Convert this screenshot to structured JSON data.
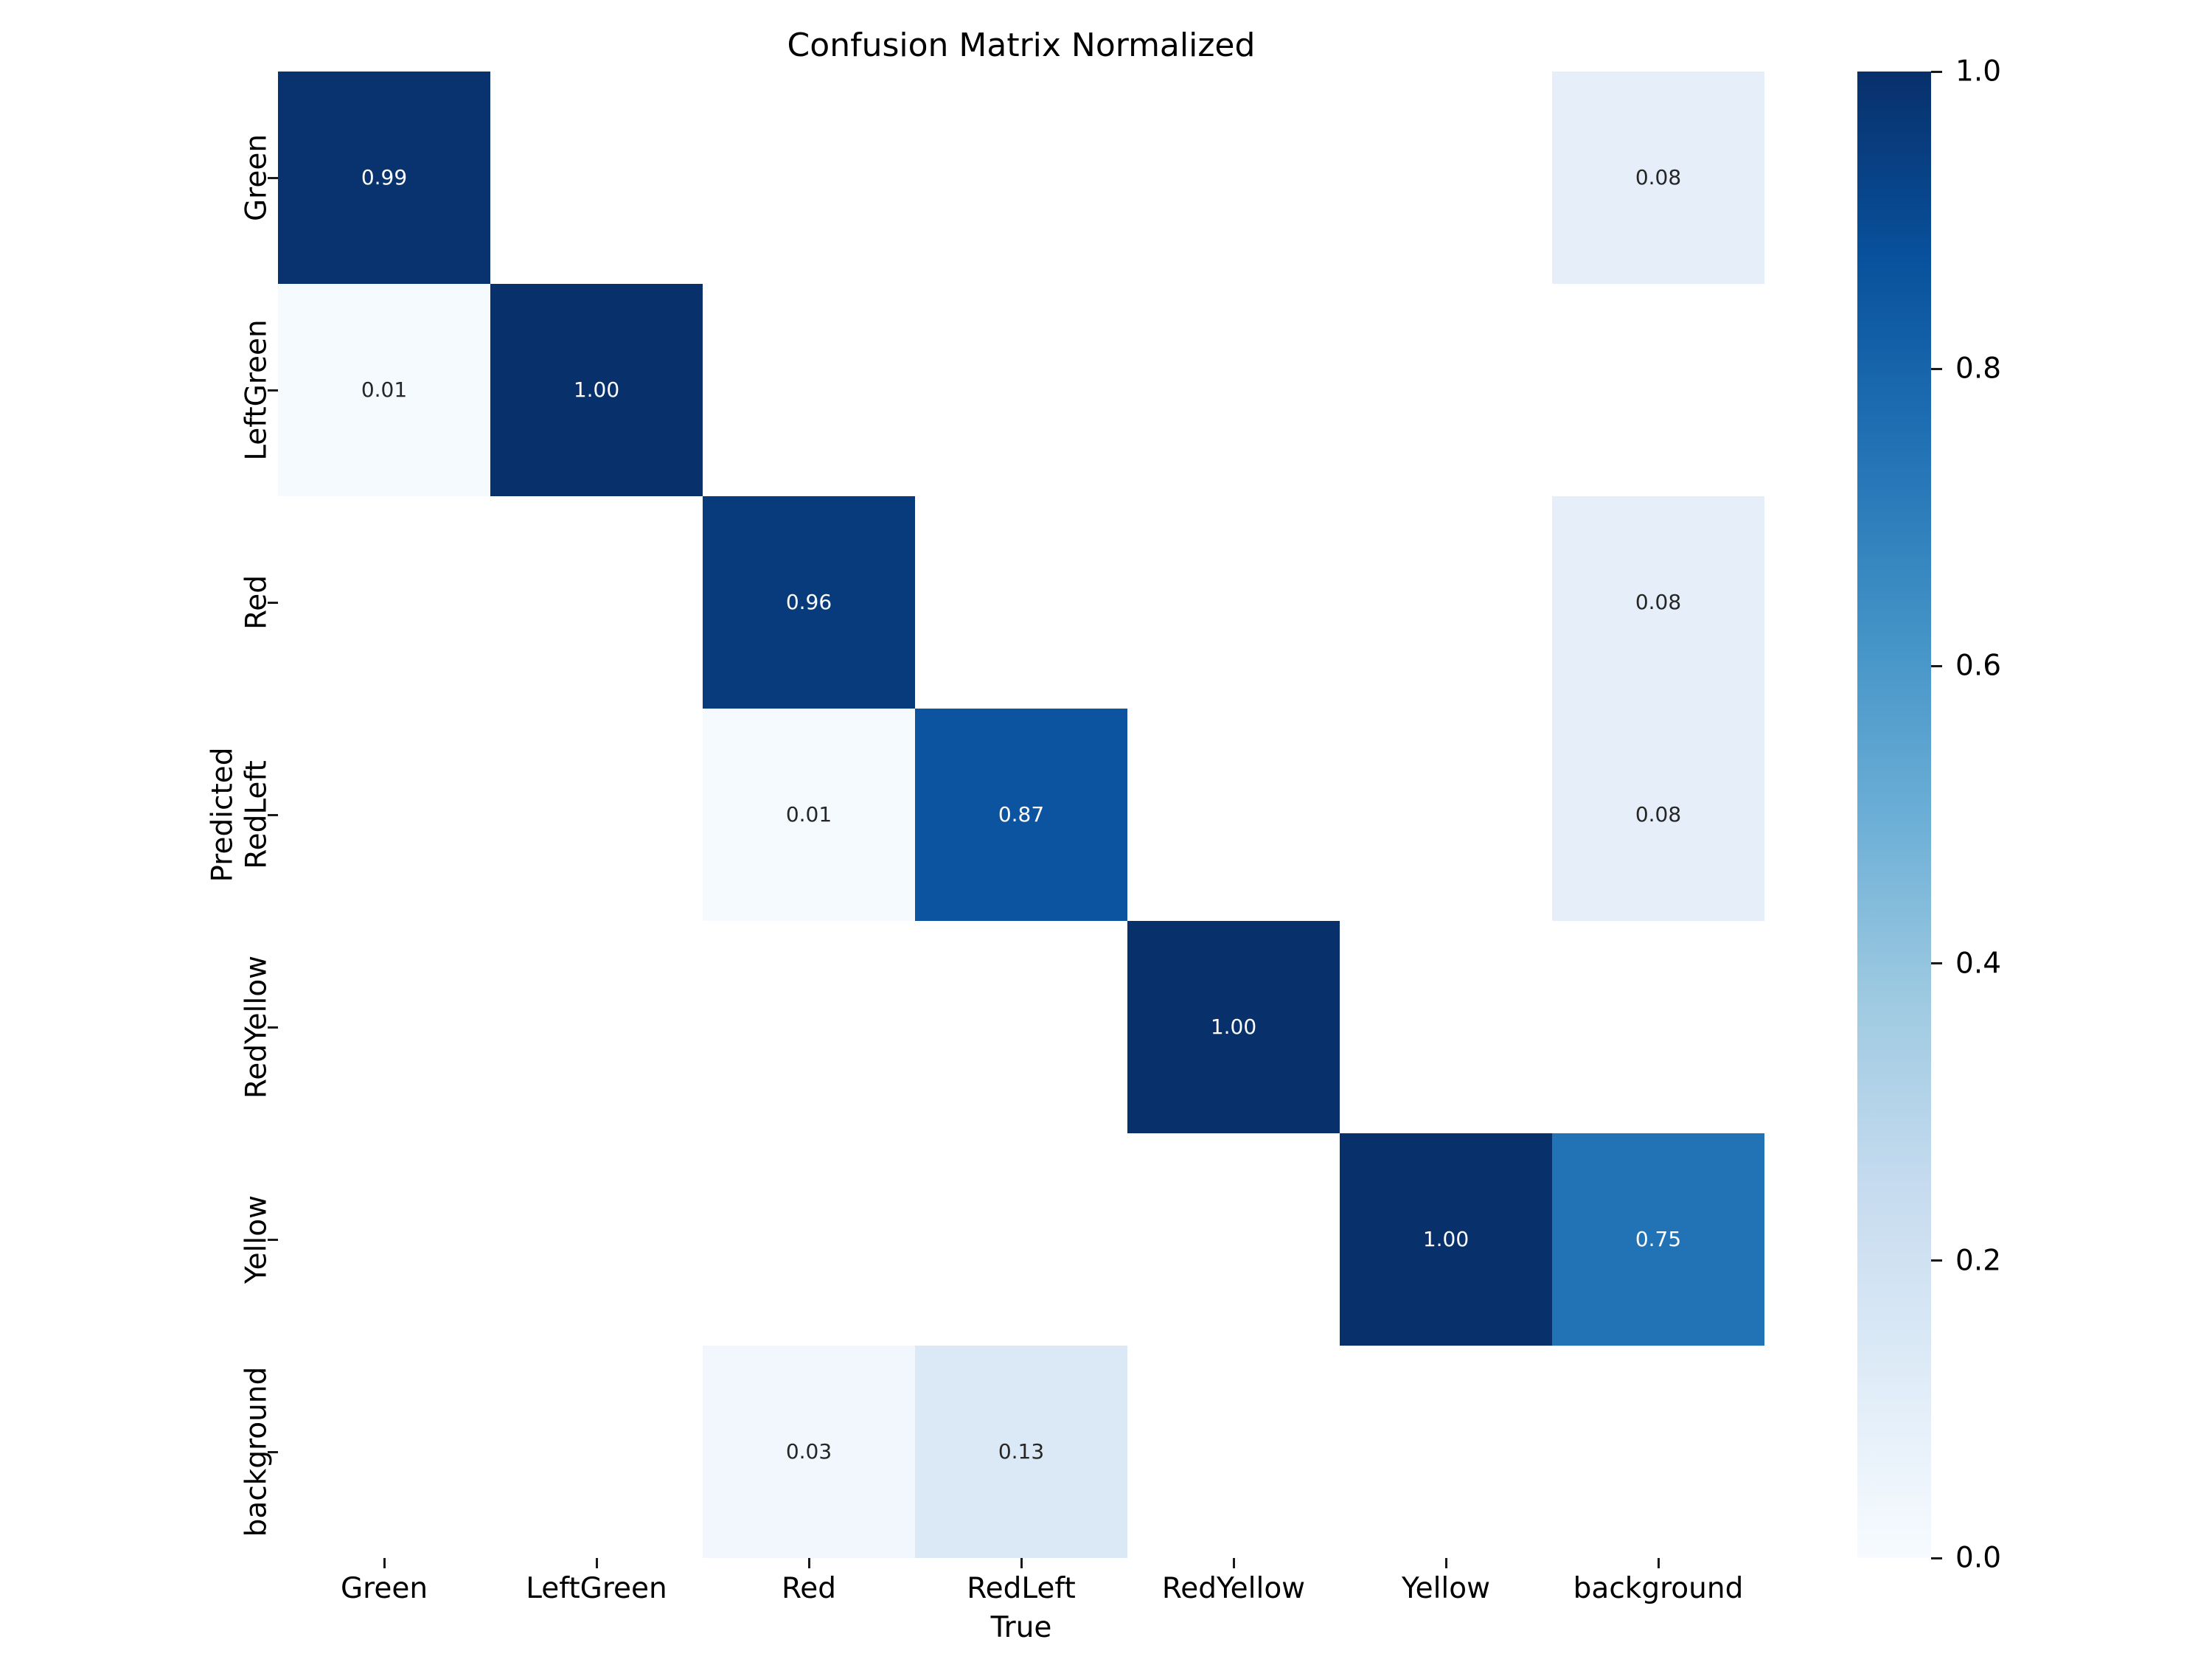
{
  "figure": {
    "title": "Confusion Matrix Normalized",
    "xlabel": "True",
    "ylabel": "Predicted",
    "background_color": "#ffffff"
  },
  "chart_data": {
    "type": "heatmap",
    "title": "Confusion Matrix Normalized",
    "xlabel": "True",
    "ylabel": "Predicted",
    "x_categories": [
      "Green",
      "LeftGreen",
      "Red",
      "RedLeft",
      "RedYellow",
      "Yellow",
      "background"
    ],
    "y_categories": [
      "Green",
      "LeftGreen",
      "Red",
      "RedLeft",
      "RedYellow",
      "Yellow",
      "background"
    ],
    "vmin": 0.0,
    "vmax": 1.0,
    "colormap": "Blues",
    "grid": false,
    "legend_position": "colorbar-right",
    "matrix_values": [
      [
        0.99,
        null,
        null,
        null,
        null,
        null,
        0.08
      ],
      [
        0.01,
        1.0,
        null,
        null,
        null,
        null,
        null
      ],
      [
        null,
        null,
        0.96,
        null,
        null,
        null,
        0.08
      ],
      [
        null,
        null,
        0.01,
        0.87,
        null,
        null,
        0.08
      ],
      [
        null,
        null,
        null,
        null,
        1.0,
        null,
        null
      ],
      [
        null,
        null,
        null,
        null,
        null,
        1.0,
        0.75
      ],
      [
        null,
        null,
        0.03,
        0.13,
        null,
        null,
        null
      ]
    ],
    "cells": [
      {
        "row": 0,
        "col": 0,
        "label": "0.99",
        "bg": "#08336f",
        "fg": "#ffffff"
      },
      {
        "row": 0,
        "col": 6,
        "label": "0.08",
        "bg": "#e6eff9",
        "fg": "#262626"
      },
      {
        "row": 1,
        "col": 0,
        "label": "0.01",
        "bg": "#f5fafe",
        "fg": "#262626"
      },
      {
        "row": 1,
        "col": 1,
        "label": "1.00",
        "bg": "#08306b",
        "fg": "#ffffff"
      },
      {
        "row": 2,
        "col": 2,
        "label": "0.96",
        "bg": "#083b7b",
        "fg": "#ffffff"
      },
      {
        "row": 2,
        "col": 6,
        "label": "0.08",
        "bg": "#e6eff9",
        "fg": "#262626"
      },
      {
        "row": 3,
        "col": 2,
        "label": "0.01",
        "bg": "#f5fafe",
        "fg": "#262626"
      },
      {
        "row": 3,
        "col": 3,
        "label": "0.87",
        "bg": "#0c549f",
        "fg": "#ffffff"
      },
      {
        "row": 3,
        "col": 6,
        "label": "0.08",
        "bg": "#e6eff9",
        "fg": "#262626"
      },
      {
        "row": 4,
        "col": 4,
        "label": "1.00",
        "bg": "#08306b",
        "fg": "#ffffff"
      },
      {
        "row": 5,
        "col": 5,
        "label": "1.00",
        "bg": "#08306b",
        "fg": "#ffffff"
      },
      {
        "row": 5,
        "col": 6,
        "label": "0.75",
        "bg": "#2272b6",
        "fg": "#ffffff"
      },
      {
        "row": 6,
        "col": 2,
        "label": "0.03",
        "bg": "#f1f7fd",
        "fg": "#262626"
      },
      {
        "row": 6,
        "col": 3,
        "label": "0.13",
        "bg": "#dbe8f5",
        "fg": "#262626"
      }
    ],
    "empty_cell_color": "#ffffff",
    "colorbar": {
      "tick_labels": [
        "1.0",
        "0.8",
        "0.6",
        "0.4",
        "0.2",
        "0.0"
      ],
      "tick_values": [
        1.0,
        0.8,
        0.6,
        0.4,
        0.2,
        0.0
      ],
      "gradient_stops_top_to_bottom": [
        "#08306b",
        "#08519c",
        "#2171b5",
        "#4292c6",
        "#6baed6",
        "#9ecae1",
        "#c6dbef",
        "#deebf7",
        "#f7fbff"
      ]
    }
  }
}
